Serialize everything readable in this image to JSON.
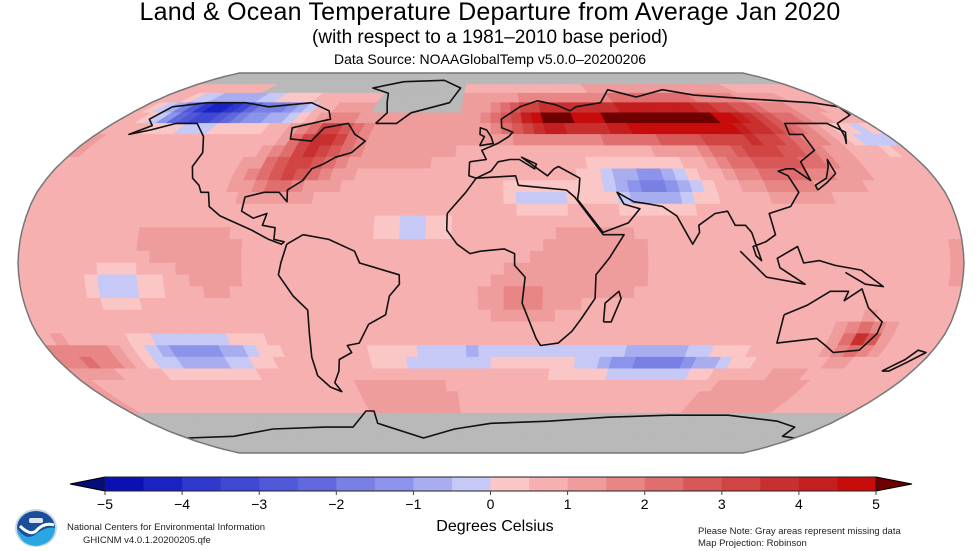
{
  "header": {
    "title": "Land & Ocean Temperature Departure from Average Jan 2020",
    "subtitle": "(with respect to a 1981–2010 base period)",
    "source": "Data Source: NOAAGlobalTemp v5.0.0–20200206"
  },
  "map": {
    "projection": "Robinson",
    "variable": "Temperature anomaly",
    "missing_color": "#b9b9b9",
    "coastline_color": "#111111",
    "regions": [
      {
        "name": "Alaska / NW Canada",
        "anomaly_c": -4
      },
      {
        "name": "Eastern Canada",
        "anomaly_c": 3
      },
      {
        "name": "Eastern United States",
        "anomaly_c": 2.5
      },
      {
        "name": "Greenland",
        "anomaly_c": null
      },
      {
        "name": "Northern Russia / Scandinavia",
        "anomaly_c": 5
      },
      {
        "name": "Eastern Asia",
        "anomaly_c": 2
      },
      {
        "name": "Middle East / Central Asia",
        "anomaly_c": -1.5
      },
      {
        "name": "Southeast Australia",
        "anomaly_c": 3
      },
      {
        "name": "South Indian Ocean",
        "anomaly_c": -1.5
      },
      {
        "name": "South Pacific",
        "anomaly_c": -1.5
      },
      {
        "name": "Antarctica",
        "anomaly_c": null
      },
      {
        "name": "Arctic Ocean",
        "anomaly_c": null
      }
    ]
  },
  "colorbar": {
    "min": -5,
    "max": 5,
    "ticks": [
      "−5",
      "−4",
      "−3",
      "−2",
      "−1",
      "0",
      "1",
      "2",
      "3",
      "4",
      "5"
    ],
    "bins": [
      {
        "from": -5.0,
        "to": -4.5,
        "color": "#0a10b4"
      },
      {
        "from": -4.5,
        "to": -4.0,
        "color": "#1a22c4"
      },
      {
        "from": -4.0,
        "to": -3.5,
        "color": "#2f38cc"
      },
      {
        "from": -3.5,
        "to": -3.0,
        "color": "#3f48d2"
      },
      {
        "from": -3.0,
        "to": -2.5,
        "color": "#5058d8"
      },
      {
        "from": -2.5,
        "to": -2.0,
        "color": "#6068dc"
      },
      {
        "from": -2.0,
        "to": -1.5,
        "color": "#7880e4"
      },
      {
        "from": -1.5,
        "to": -1.0,
        "color": "#8c93ea"
      },
      {
        "from": -1.0,
        "to": -0.5,
        "color": "#a8adf0"
      },
      {
        "from": -0.5,
        "to": 0.0,
        "color": "#c6c9f6"
      },
      {
        "from": 0.0,
        "to": 0.5,
        "color": "#fbc6c6"
      },
      {
        "from": 0.5,
        "to": 1.0,
        "color": "#f6b0b0"
      },
      {
        "from": 1.0,
        "to": 1.5,
        "color": "#ef9c9c"
      },
      {
        "from": 1.5,
        "to": 2.0,
        "color": "#e88686"
      },
      {
        "from": 2.0,
        "to": 2.5,
        "color": "#e06e6e"
      },
      {
        "from": 2.5,
        "to": 3.0,
        "color": "#d85858"
      },
      {
        "from": 3.0,
        "to": 3.5,
        "color": "#d04444"
      },
      {
        "from": 3.5,
        "to": 4.0,
        "color": "#c83030"
      },
      {
        "from": 4.0,
        "to": 4.5,
        "color": "#c41e1e"
      },
      {
        "from": 4.5,
        "to": 5.0,
        "color": "#c80c0c"
      }
    ],
    "under_color": "#060c78",
    "over_color": "#6e0000",
    "units_label": "Degrees Celsius"
  },
  "footer": {
    "org": "National Centers for Environmental Information",
    "dataset": "GHICNM v4.0.1.20200205.qfe",
    "note": "Please Note: Gray areas represent missing data",
    "projection_note": "Map Projection: Robinson"
  },
  "logo": {
    "name": "NOAA",
    "colors": {
      "top": "#1b4f9c",
      "bottom": "#2aa7e0",
      "ring": "#ffffff"
    }
  }
}
